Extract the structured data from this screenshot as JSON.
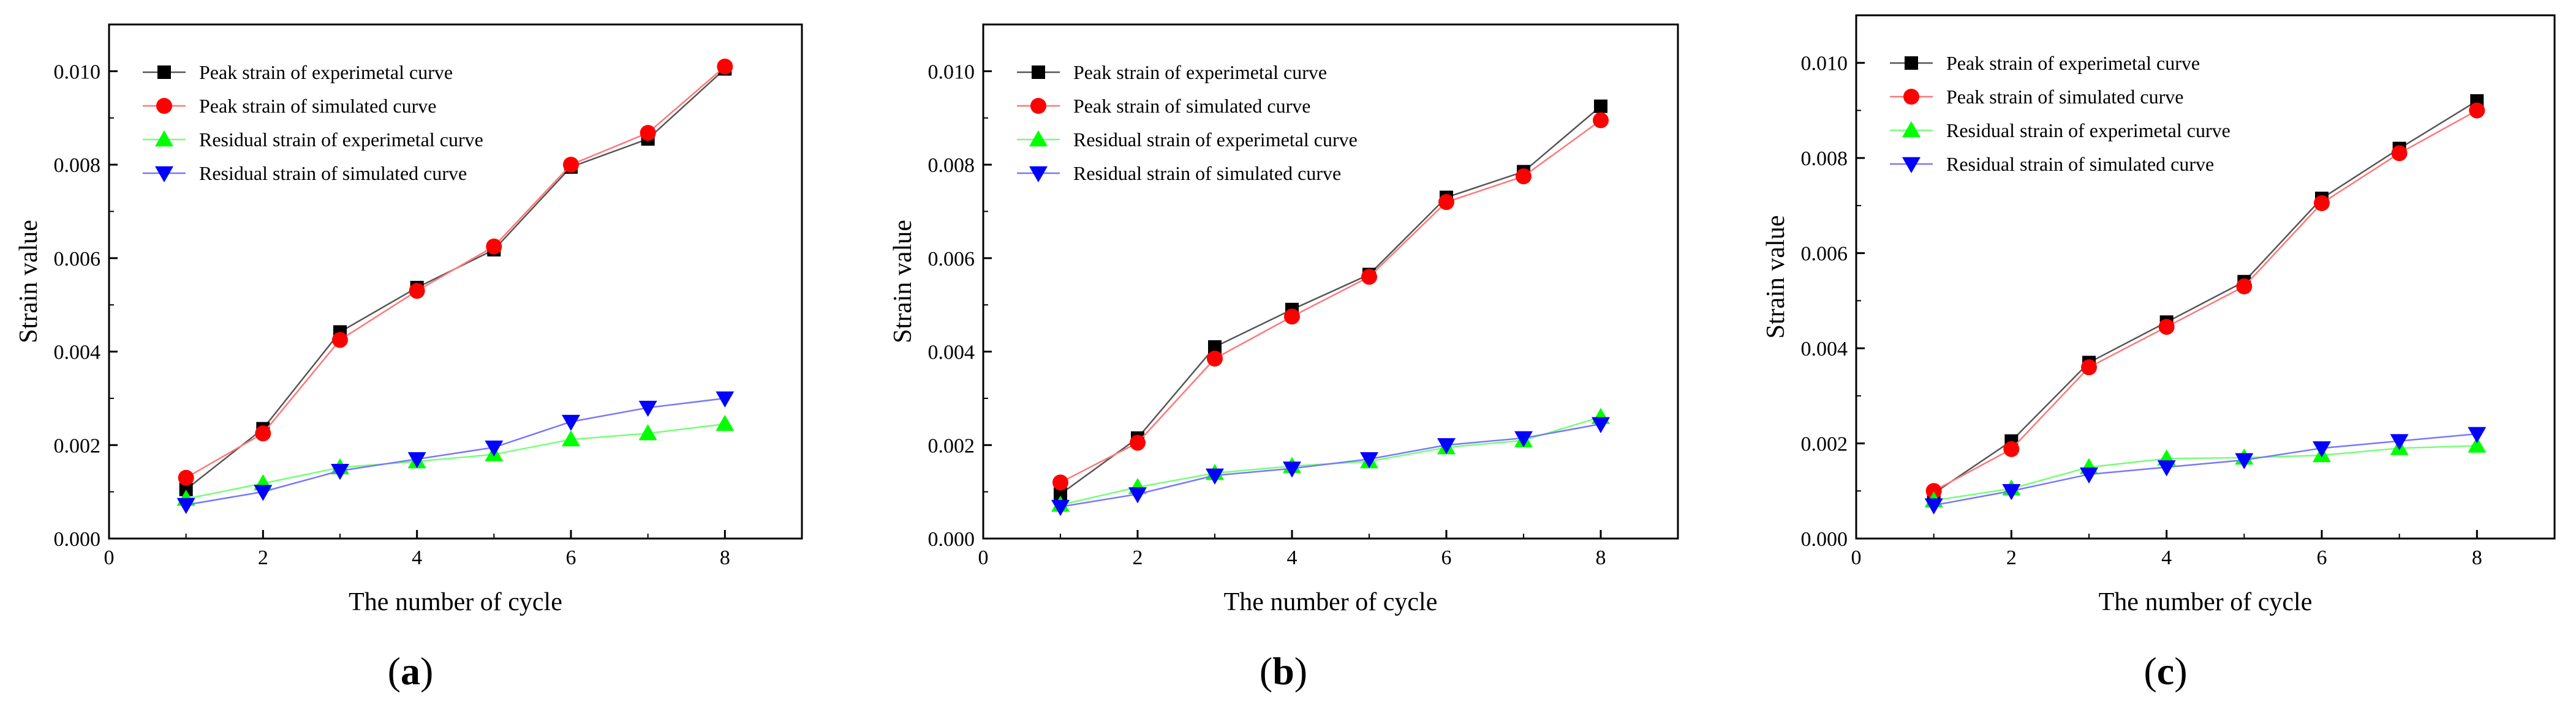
{
  "colors": {
    "peak_exp": "#000000",
    "peak_sim": "#ff0000",
    "res_exp": "#00ff00",
    "res_sim": "#0000ff",
    "peak_exp_line": "#555555",
    "peak_sim_line": "#ff7777",
    "res_exp_line": "#77ff77",
    "res_sim_line": "#7777ff"
  },
  "chart_data": [
    {
      "type": "line",
      "panel_label": "(a)",
      "xlabel": "The number of cycle",
      "ylabel": "Strain value",
      "xlim": [
        0,
        9
      ],
      "ylim": [
        0,
        0.011
      ],
      "xticks": [
        0,
        2,
        4,
        6,
        8
      ],
      "xtick_labels": [
        "0",
        "2",
        "4",
        "6",
        "8"
      ],
      "yticks": [
        0,
        0.002,
        0.004,
        0.006,
        0.008,
        0.01
      ],
      "ytick_labels": [
        "0.000",
        "0.002",
        "0.004",
        "0.006",
        "0.008",
        "0.010"
      ],
      "legend_position": "top-left",
      "x": [
        1,
        2,
        3,
        4,
        5,
        6,
        7,
        8
      ],
      "series": [
        {
          "name": "Peak strain of experimetal curve",
          "marker": "square",
          "color_key": "peak_exp",
          "values": [
            0.00105,
            0.00235,
            0.00442,
            0.00537,
            0.00618,
            0.00795,
            0.00855,
            0.01005
          ]
        },
        {
          "name": "Peak strain of simulated curve",
          "marker": "circle",
          "color_key": "peak_sim",
          "values": [
            0.0013,
            0.00225,
            0.00425,
            0.0053,
            0.00625,
            0.008,
            0.00868,
            0.0101
          ]
        },
        {
          "name": "Residual strain of experimetal curve",
          "marker": "triangle-up",
          "color_key": "res_exp",
          "values": [
            0.00085,
            0.00118,
            0.00152,
            0.00165,
            0.0018,
            0.00212,
            0.00225,
            0.00245
          ]
        },
        {
          "name": "Residual strain of simulated curve",
          "marker": "triangle-down",
          "color_key": "res_sim",
          "values": [
            0.00072,
            0.001,
            0.00145,
            0.0017,
            0.00195,
            0.0025,
            0.0028,
            0.003
          ]
        }
      ]
    },
    {
      "type": "line",
      "panel_label": "(b)",
      "xlabel": "The number of cycle",
      "ylabel": "Strain value",
      "xlim": [
        0,
        9
      ],
      "ylim": [
        0,
        0.011
      ],
      "xticks": [
        0,
        2,
        4,
        6,
        8
      ],
      "xtick_labels": [
        "0",
        "2",
        "4",
        "6",
        "8"
      ],
      "yticks": [
        0,
        0.002,
        0.004,
        0.006,
        0.008,
        0.01
      ],
      "ytick_labels": [
        "0.000",
        "0.002",
        "0.004",
        "0.006",
        "0.008",
        "0.010"
      ],
      "legend_position": "top-left",
      "x": [
        1,
        2,
        3,
        4,
        5,
        6,
        7,
        8
      ],
      "series": [
        {
          "name": "Peak strain of experimetal curve",
          "marker": "square",
          "color_key": "peak_exp",
          "values": [
            0.00095,
            0.00215,
            0.0041,
            0.0049,
            0.00565,
            0.0073,
            0.00785,
            0.00925
          ]
        },
        {
          "name": "Peak strain of simulated curve",
          "marker": "circle",
          "color_key": "peak_sim",
          "values": [
            0.0012,
            0.00205,
            0.00385,
            0.00475,
            0.0056,
            0.0072,
            0.00775,
            0.00895
          ]
        },
        {
          "name": "Residual strain of experimetal curve",
          "marker": "triangle-up",
          "color_key": "res_exp",
          "values": [
            0.00072,
            0.0011,
            0.0014,
            0.00155,
            0.00165,
            0.00195,
            0.0021,
            0.0026
          ]
        },
        {
          "name": "Residual strain of simulated curve",
          "marker": "triangle-down",
          "color_key": "res_sim",
          "values": [
            0.00068,
            0.00095,
            0.00135,
            0.0015,
            0.0017,
            0.002,
            0.00215,
            0.00245
          ]
        }
      ]
    },
    {
      "type": "line",
      "panel_label": "(c)",
      "xlabel": "The number of cycle",
      "ylabel": "Strain value",
      "xlim": [
        0,
        9
      ],
      "ylim": [
        0,
        0.011
      ],
      "xticks": [
        0,
        2,
        4,
        6,
        8
      ],
      "xtick_labels": [
        "0",
        "2",
        "4",
        "6",
        "8"
      ],
      "yticks": [
        0,
        0.002,
        0.004,
        0.006,
        0.008,
        0.01
      ],
      "ytick_labels": [
        "0.000",
        "0.002",
        "0.004",
        "0.006",
        "0.008",
        "0.010"
      ],
      "legend_position": "top-left",
      "x": [
        1,
        2,
        3,
        4,
        5,
        6,
        7,
        8
      ],
      "series": [
        {
          "name": "Peak strain of experimetal curve",
          "marker": "square",
          "color_key": "peak_exp",
          "values": [
            0.00095,
            0.00205,
            0.0037,
            0.00455,
            0.0054,
            0.00715,
            0.0082,
            0.0092
          ]
        },
        {
          "name": "Peak strain of simulated curve",
          "marker": "circle",
          "color_key": "peak_sim",
          "values": [
            0.001,
            0.00188,
            0.0036,
            0.00445,
            0.0053,
            0.00705,
            0.0081,
            0.009
          ]
        },
        {
          "name": "Residual strain of experimetal curve",
          "marker": "triangle-up",
          "color_key": "res_exp",
          "values": [
            0.0008,
            0.00105,
            0.0015,
            0.00168,
            0.0017,
            0.00175,
            0.0019,
            0.00195
          ]
        },
        {
          "name": "Residual strain of simulated curve",
          "marker": "triangle-down",
          "color_key": "res_sim",
          "values": [
            0.0007,
            0.001,
            0.00135,
            0.0015,
            0.00165,
            0.0019,
            0.00205,
            0.0022
          ]
        }
      ]
    }
  ]
}
